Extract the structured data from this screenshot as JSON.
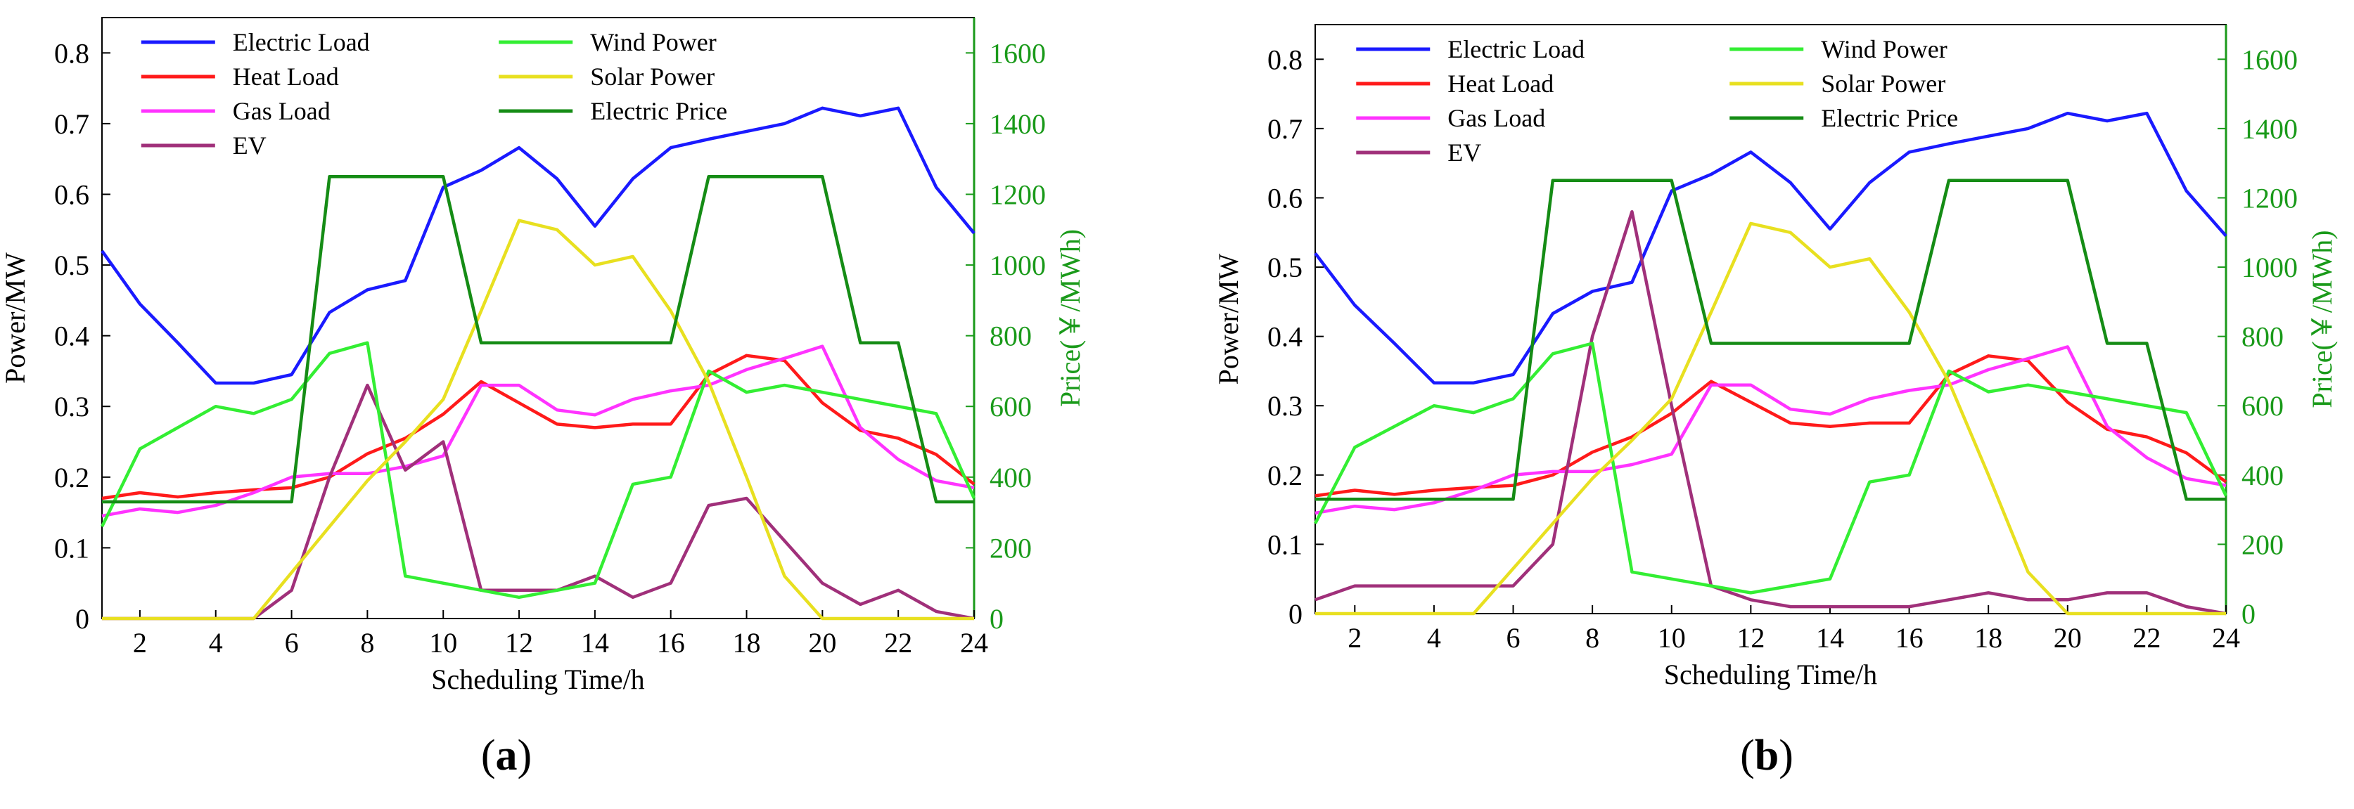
{
  "chart_data": [
    {
      "type": "line",
      "panel_label": "(a)",
      "panel_letter": "a",
      "xlabel": "Scheduling Time/h",
      "ylabel": "Power/MW",
      "ylabel_right": "Price(￥/MWh)",
      "xlim": [
        1,
        24
      ],
      "ylim": [
        0,
        0.85
      ],
      "ylim_right": [
        0,
        1700
      ],
      "x_ticks": [
        "2",
        "4",
        "6",
        "8",
        "10",
        "12",
        "14",
        "16",
        "18",
        "20",
        "22",
        "24"
      ],
      "y_ticks": [
        "0",
        "0.1",
        "0.2",
        "0.3",
        "0.4",
        "0.5",
        "0.6",
        "0.7",
        "0.8"
      ],
      "y_ticks_right": [
        "0",
        "200",
        "400",
        "600",
        "800",
        "1000",
        "1200",
        "1400",
        "1600"
      ],
      "legend_position": "top",
      "x": [
        1,
        2,
        3,
        4,
        5,
        6,
        7,
        8,
        9,
        10,
        11,
        12,
        13,
        14,
        15,
        16,
        17,
        18,
        19,
        20,
        21,
        22,
        23,
        24
      ],
      "series": [
        {
          "name": "Electric Load",
          "color": "#1a1aff",
          "axis": "left",
          "values": [
            0.52,
            0.445,
            0.39,
            0.333,
            0.333,
            0.345,
            0.433,
            0.465,
            0.478,
            0.61,
            0.634,
            0.666,
            0.622,
            0.555,
            0.622,
            0.666,
            0.678,
            0.689,
            0.7,
            0.722,
            0.711,
            0.722,
            0.61,
            0.545
          ]
        },
        {
          "name": "Heat Load",
          "color": "#ff1a1a",
          "axis": "left",
          "values": [
            0.17,
            0.178,
            0.172,
            0.178,
            0.182,
            0.185,
            0.2,
            0.233,
            0.255,
            0.289,
            0.335,
            0.305,
            0.275,
            0.27,
            0.275,
            0.275,
            0.345,
            0.372,
            0.365,
            0.305,
            0.266,
            0.255,
            0.232,
            0.19
          ]
        },
        {
          "name": "Gas Load",
          "color": "#ff33ff",
          "axis": "left",
          "values": [
            0.145,
            0.155,
            0.15,
            0.16,
            0.178,
            0.2,
            0.205,
            0.205,
            0.215,
            0.23,
            0.33,
            0.33,
            0.295,
            0.288,
            0.31,
            0.322,
            0.33,
            0.352,
            0.368,
            0.385,
            0.27,
            0.225,
            0.195,
            0.185
          ]
        },
        {
          "name": "EV",
          "color": "#a0307a",
          "axis": "left",
          "values": [
            0,
            0,
            0,
            0,
            0,
            0.04,
            0.2,
            0.33,
            0.21,
            0.25,
            0.04,
            0.04,
            0.04,
            0.06,
            0.03,
            0.05,
            0.16,
            0.17,
            0.11,
            0.05,
            0.02,
            0.04,
            0.01,
            0
          ]
        },
        {
          "name": "Wind Power",
          "color": "#33ee33",
          "axis": "left",
          "values": [
            0.13,
            0.24,
            0.27,
            0.3,
            0.29,
            0.31,
            0.375,
            0.39,
            0.06,
            0.05,
            0.04,
            0.03,
            0.04,
            0.05,
            0.19,
            0.2,
            0.35,
            0.32,
            0.33,
            0.32,
            0.31,
            0.3,
            0.29,
            0.17
          ]
        },
        {
          "name": "Solar Power",
          "color": "#e8e020",
          "axis": "left",
          "values": [
            0,
            0,
            0,
            0,
            0,
            0.065,
            0.13,
            0.195,
            0.25,
            0.31,
            0.435,
            0.563,
            0.55,
            0.5,
            0.512,
            0.435,
            0.335,
            0.2,
            0.06,
            0,
            0,
            0,
            0,
            0
          ]
        },
        {
          "name": "Electric Price",
          "color": "#158c15",
          "axis": "right",
          "values": [
            330,
            330,
            330,
            330,
            330,
            330,
            1250,
            1250,
            1250,
            1250,
            780,
            780,
            780,
            780,
            780,
            780,
            1250,
            1250,
            1250,
            1250,
            780,
            780,
            330,
            330
          ]
        }
      ]
    },
    {
      "type": "line",
      "panel_label": "(b)",
      "panel_letter": "b",
      "xlabel": "Scheduling Time/h",
      "ylabel": "Power/MW",
      "ylabel_right": "Price(￥/MWh)",
      "xlim": [
        1,
        24
      ],
      "ylim": [
        0,
        0.85
      ],
      "ylim_right": [
        0,
        1700
      ],
      "x_ticks": [
        "2",
        "4",
        "6",
        "8",
        "10",
        "12",
        "14",
        "16",
        "18",
        "20",
        "22",
        "24"
      ],
      "y_ticks": [
        "0",
        "0.1",
        "0.2",
        "0.3",
        "0.4",
        "0.5",
        "0.6",
        "0.7",
        "0.8"
      ],
      "y_ticks_right": [
        "0",
        "200",
        "400",
        "600",
        "800",
        "1000",
        "1200",
        "1400",
        "1600"
      ],
      "legend_position": "top",
      "x": [
        1,
        2,
        3,
        4,
        5,
        6,
        7,
        8,
        9,
        10,
        11,
        12,
        13,
        14,
        15,
        16,
        17,
        18,
        19,
        20,
        21,
        22,
        23,
        24
      ],
      "series": [
        {
          "name": "Electric Load",
          "color": "#1a1aff",
          "axis": "left",
          "values": [
            0.52,
            0.445,
            0.39,
            0.333,
            0.333,
            0.345,
            0.433,
            0.465,
            0.478,
            0.61,
            0.634,
            0.666,
            0.622,
            0.555,
            0.622,
            0.666,
            0.678,
            0.689,
            0.7,
            0.722,
            0.711,
            0.722,
            0.61,
            0.545
          ]
        },
        {
          "name": "Heat Load",
          "color": "#ff1a1a",
          "axis": "left",
          "values": [
            0.17,
            0.178,
            0.172,
            0.178,
            0.182,
            0.185,
            0.2,
            0.233,
            0.255,
            0.289,
            0.335,
            0.305,
            0.275,
            0.27,
            0.275,
            0.275,
            0.345,
            0.372,
            0.365,
            0.305,
            0.266,
            0.255,
            0.232,
            0.19
          ]
        },
        {
          "name": "Gas Load",
          "color": "#ff33ff",
          "axis": "left",
          "values": [
            0.145,
            0.155,
            0.15,
            0.16,
            0.178,
            0.2,
            0.205,
            0.205,
            0.215,
            0.23,
            0.33,
            0.33,
            0.295,
            0.288,
            0.31,
            0.322,
            0.33,
            0.352,
            0.368,
            0.385,
            0.27,
            0.225,
            0.195,
            0.185
          ]
        },
        {
          "name": "EV",
          "color": "#a0307a",
          "axis": "left",
          "values": [
            0.02,
            0.04,
            0.04,
            0.04,
            0.04,
            0.04,
            0.1,
            0.4,
            0.58,
            0.3,
            0.04,
            0.02,
            0.01,
            0.01,
            0.01,
            0.01,
            0.02,
            0.03,
            0.02,
            0.02,
            0.03,
            0.03,
            0.01,
            0
          ]
        },
        {
          "name": "Wind Power",
          "color": "#33ee33",
          "axis": "left",
          "values": [
            0.13,
            0.24,
            0.27,
            0.3,
            0.29,
            0.31,
            0.375,
            0.39,
            0.06,
            0.05,
            0.04,
            0.03,
            0.04,
            0.05,
            0.19,
            0.2,
            0.35,
            0.32,
            0.33,
            0.32,
            0.31,
            0.3,
            0.29,
            0.17
          ]
        },
        {
          "name": "Solar Power",
          "color": "#e8e020",
          "axis": "left",
          "values": [
            0,
            0,
            0,
            0,
            0,
            0.065,
            0.13,
            0.195,
            0.25,
            0.31,
            0.435,
            0.563,
            0.55,
            0.5,
            0.512,
            0.435,
            0.335,
            0.2,
            0.06,
            0,
            0,
            0,
            0,
            0
          ]
        },
        {
          "name": "Electric Price",
          "color": "#158c15",
          "axis": "right",
          "values": [
            330,
            330,
            330,
            330,
            330,
            330,
            1250,
            1250,
            1250,
            1250,
            780,
            780,
            780,
            780,
            780,
            780,
            1250,
            1250,
            1250,
            1250,
            780,
            780,
            330,
            330
          ]
        }
      ]
    }
  ]
}
